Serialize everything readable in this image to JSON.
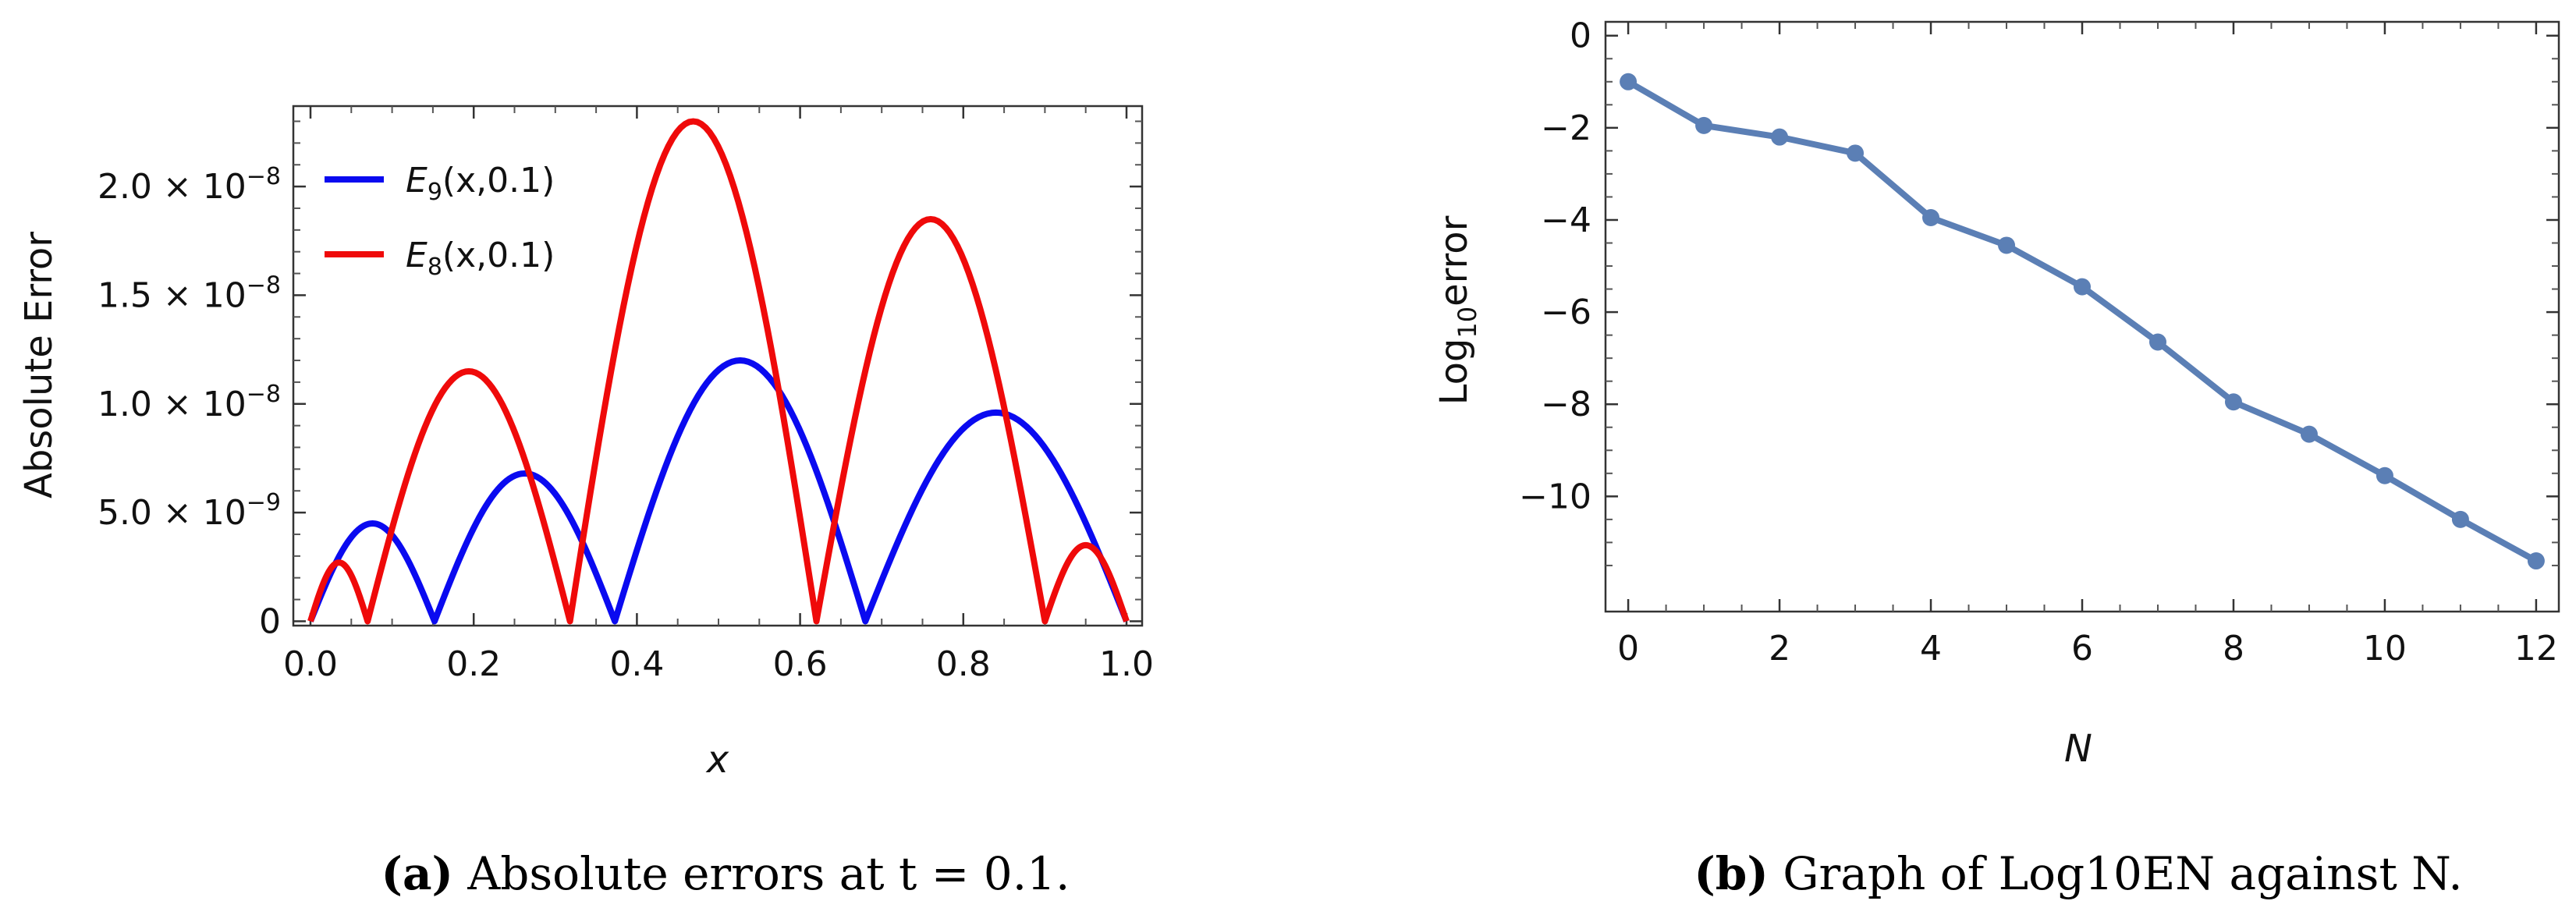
{
  "chart_data": [
    {
      "type": "line",
      "panel": "a",
      "caption_letter": "(a)",
      "caption_text": "Absolute errors at t = 0.1.",
      "title": "",
      "xlabel": "x",
      "ylabel": "Absolute Error",
      "xlim": [
        0,
        1
      ],
      "ylim": [
        -2e-10,
        2.37e-08
      ],
      "x_tick_labels": [
        "0.0",
        "0.2",
        "0.4",
        "0.6",
        "0.8",
        "1.0"
      ],
      "x_ticks": [
        0,
        0.2,
        0.4,
        0.6,
        0.8,
        1.0
      ],
      "y_tick_labels": [
        "0",
        "5.0 × 10−9",
        "1.0 × 10−8",
        "1.5 × 10−8",
        "2.0 × 10−8"
      ],
      "y_ticks": [
        0,
        5e-09,
        1e-08,
        1.5e-08,
        2e-08
      ],
      "legend_position": "top-left",
      "series": [
        {
          "name": "E9(x,0.1)",
          "legend_main": "E",
          "legend_sub": "9",
          "legend_rest": "(x,0.1)",
          "color": "#0a0af0",
          "zeros": [
            0,
            0.152,
            0.373,
            0.68,
            1.0
          ],
          "peaks": [
            4.5e-09,
            6.8e-09,
            1.2e-08,
            9.6e-09
          ]
        },
        {
          "name": "E8(x,0.1)",
          "legend_main": "E",
          "legend_sub": "8",
          "legend_rest": "(x,0.1)",
          "color": "#ef0a0a",
          "zeros": [
            0,
            0.07,
            0.318,
            0.62,
            0.9,
            1.0
          ],
          "peaks": [
            2.7e-09,
            1.15e-08,
            2.3e-08,
            1.85e-08,
            3.5e-09
          ]
        }
      ]
    },
    {
      "type": "line",
      "panel": "b",
      "caption_letter": "(b)",
      "caption_text": "Graph of Log10EN against N.",
      "title": "",
      "xlabel": "N",
      "ylabel_main": "Log",
      "ylabel_sub": "10",
      "ylabel_rest": "error",
      "xlim": [
        -0.3,
        12.3
      ],
      "ylim": [
        -12.5,
        0.3
      ],
      "x_tick_labels": [
        "0",
        "2",
        "4",
        "6",
        "8",
        "10",
        "12"
      ],
      "x_ticks": [
        0,
        2,
        4,
        6,
        8,
        10,
        12
      ],
      "y_tick_labels": [
        "0",
        "−2",
        "−4",
        "−6",
        "−8",
        "−10"
      ],
      "y_ticks": [
        0,
        -2,
        -4,
        -6,
        -8,
        -10
      ],
      "series": [
        {
          "name": "Log10 error",
          "color": "#5b7fb5",
          "x": [
            0,
            1,
            2,
            3,
            4,
            5,
            6,
            7,
            8,
            9,
            10,
            11,
            12
          ],
          "y": [
            -1.0,
            -1.95,
            -2.2,
            -2.55,
            -3.95,
            -4.55,
            -5.45,
            -6.65,
            -7.95,
            -8.65,
            -9.55,
            -10.5,
            -11.4
          ]
        }
      ]
    }
  ]
}
